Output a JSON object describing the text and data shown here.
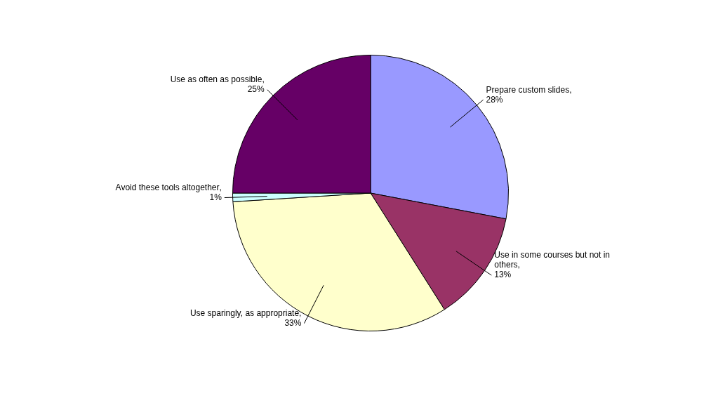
{
  "chart_data": {
    "type": "pie",
    "categories": [
      "Prepare custom slides",
      "Use in some courses but not in others",
      "Use sparingly, as appropriate",
      "Avoid these tools altogether",
      "Use as often as possible"
    ],
    "value_labels": [
      ",\n28%",
      ",\n13%",
      ",\n33%",
      ",\n1%",
      ",\n25%"
    ],
    "values": [
      28,
      13,
      33,
      1,
      25
    ],
    "colors": [
      "#9999ff",
      "#993366",
      "#ffffcc",
      "#ccffff",
      "#660066"
    ],
    "legend": false
  }
}
